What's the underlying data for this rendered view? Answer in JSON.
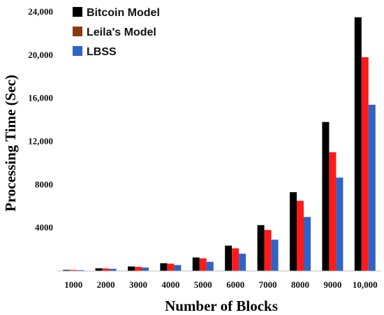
{
  "chart_data": {
    "type": "bar",
    "xlabel": "Number of Blocks",
    "ylabel": "Processing Time (Sec)",
    "categories": [
      "1000",
      "2000",
      "3000",
      "4000",
      "5000",
      "6000",
      "7000",
      "8000",
      "9000",
      "10,000"
    ],
    "ylim": [
      0,
      24000
    ],
    "yticks": [
      4000,
      8000,
      12000,
      16000,
      20000,
      24000
    ],
    "ytick_labels": [
      "4000",
      "8000",
      "12,000",
      "16,000",
      "20,000",
      "24,000"
    ],
    "grid": false,
    "legend_position": "top-left",
    "series": [
      {
        "name": "Bitcoin Model",
        "color": "#000000",
        "values": [
          100,
          250,
          420,
          720,
          1250,
          2350,
          4250,
          7300,
          13800,
          23500
        ]
      },
      {
        "name": "Leila's Model",
        "color_legend": "#8b3a0f",
        "color": "#ff1a1a",
        "values": [
          100,
          230,
          380,
          680,
          1170,
          2100,
          3800,
          6500,
          11000,
          19800
        ]
      },
      {
        "name": "LBSS",
        "color": "#2f63c5",
        "values": [
          80,
          200,
          320,
          550,
          850,
          1600,
          2900,
          5000,
          8650,
          15400
        ]
      }
    ]
  }
}
